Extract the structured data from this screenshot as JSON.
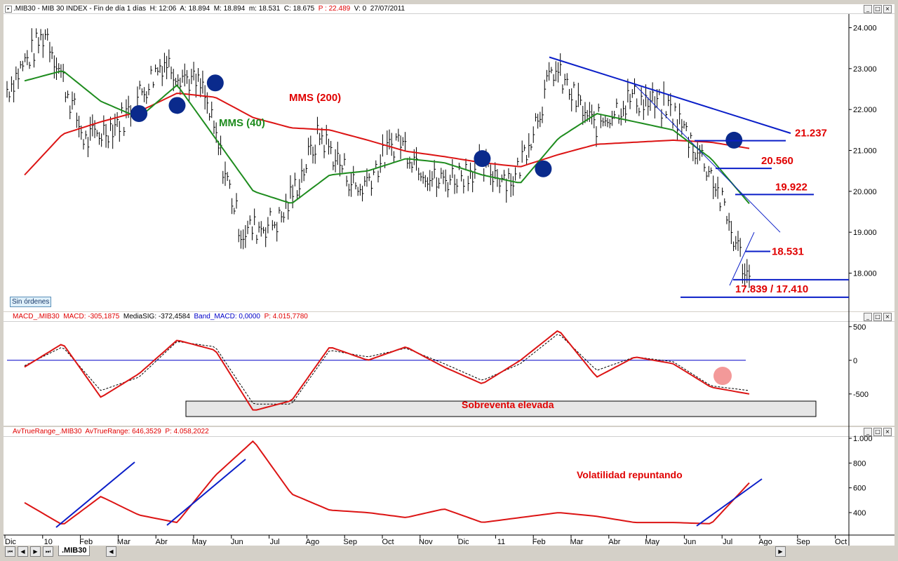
{
  "header": {
    "symbol": ".MIB30",
    "name": "MIB 30 INDEX",
    "period": "Fin de día 1 días",
    "h": "H: 12:06",
    "a": "A: 18.894",
    "m": "M: 18.894",
    "mn": "m: 18.531",
    "c": "C: 18.675",
    "p": "P : 22.489",
    "v": "V: 0",
    "date": "27/07/2011"
  },
  "macd_header": {
    "label": "MACD_.MIB30",
    "macd": "MACD: -305,1875",
    "signal": "MediaSIG: -372,4584",
    "band": "Band_MACD: 0,0000",
    "p": "P: 4.015,7780"
  },
  "atr_header": {
    "label": "AvTrueRange_.MIB30",
    "value": "AvTrueRange: 646,3529",
    "p": "P: 4.058,2022"
  },
  "orders_button": "Sin órdenes",
  "sheet_tab": ".MIB30",
  "annotations": {
    "mms200": "MMS (200)",
    "mms40": "MMS (40)",
    "oversold": "Sobreventa elevada",
    "volatility": "Volatilidad repuntando"
  },
  "levels": [
    {
      "value": 21237,
      "label": "21.237"
    },
    {
      "value": 20560,
      "label": "20.560"
    },
    {
      "value": 19922,
      "label": "19.922"
    },
    {
      "value": 18531,
      "label": "18.531"
    },
    {
      "value": 17839,
      "label": "17.839 / 17.410"
    }
  ],
  "colors": {
    "price": "#000000",
    "mms200": "#dc1414",
    "mms40": "#1e8c1e",
    "trend": "#0a1ec8",
    "label": "#e00000",
    "cross": "#0a2a8c"
  },
  "x_ticks": [
    "Dic",
    "10",
    "Feb",
    "Mar",
    "Abr",
    "May",
    "Jun",
    "Jul",
    "Ago",
    "Sep",
    "Oct",
    "Nov",
    "Dic",
    "11",
    "Feb",
    "Mar",
    "Abr",
    "May",
    "Jun",
    "Jul",
    "Ago",
    "Sep",
    "Oct"
  ],
  "chart_data": [
    {
      "type": "line",
      "title": ".MIB30 - MIB 30 INDEX",
      "x": [
        "Dic",
        "10",
        "Feb",
        "Mar",
        "Abr",
        "May",
        "Jun",
        "Jul",
        "Ago",
        "Sep",
        "Oct",
        "Nov",
        "Dic",
        "11",
        "Feb",
        "Mar",
        "Abr",
        "May",
        "Jun",
        "Jul"
      ],
      "series": [
        {
          "name": "Precio",
          "values": [
            22500,
            23900,
            21200,
            21800,
            23200,
            22500,
            19000,
            19300,
            21400,
            20000,
            21300,
            20200,
            20600,
            20300,
            23000,
            21600,
            22300,
            22000,
            20500,
            17800
          ]
        },
        {
          "name": "MMS (200)",
          "values": [
            20400,
            21400,
            21700,
            21950,
            22400,
            22300,
            21800,
            21550,
            21500,
            21250,
            20980,
            20850,
            20700,
            20600,
            20900,
            21150,
            21200,
            21250,
            21200,
            21050
          ]
        },
        {
          "name": "MMS (40)",
          "values": [
            22700,
            22950,
            22200,
            21800,
            22600,
            21300,
            20000,
            19700,
            20400,
            20500,
            20800,
            20700,
            20400,
            20200,
            21300,
            21900,
            21700,
            21500,
            20800,
            19700
          ]
        }
      ],
      "ylim": [
        17100,
        24300
      ],
      "y_ticks": [
        "24.000",
        "23.000",
        "22.000",
        "21.000",
        "20.000",
        "19.000",
        "18.000"
      ]
    },
    {
      "type": "line",
      "title": "MACD_.MIB30",
      "x": [
        "Dic",
        "10",
        "Feb",
        "Mar",
        "Abr",
        "May",
        "Jun",
        "Jul",
        "Ago",
        "Sep",
        "Oct",
        "Nov",
        "Dic",
        "11",
        "Feb",
        "Mar",
        "Abr",
        "May",
        "Jun",
        "Jul"
      ],
      "series": [
        {
          "name": "MACD",
          "values": [
            -100,
            250,
            -550,
            -200,
            300,
            150,
            -750,
            -600,
            200,
            0,
            200,
            -100,
            -350,
            0,
            450,
            -250,
            50,
            -50,
            -400,
            -500
          ]
        },
        {
          "name": "MediaSIG",
          "values": [
            -80,
            200,
            -450,
            -250,
            280,
            200,
            -650,
            -650,
            150,
            50,
            180,
            -50,
            -300,
            -50,
            400,
            -150,
            50,
            -20,
            -380,
            -450
          ]
        },
        {
          "name": "Band_MACD",
          "values": [
            0,
            0,
            0,
            0,
            0,
            0,
            0,
            0,
            0,
            0,
            0,
            0,
            0,
            0,
            0,
            0,
            0,
            0,
            0,
            0
          ]
        }
      ],
      "ylim": [
        -950,
        550
      ],
      "y_ticks": [
        "500",
        "0",
        "-500"
      ]
    },
    {
      "type": "line",
      "title": "AvTrueRange_.MIB30",
      "x": [
        "Dic",
        "10",
        "Feb",
        "Mar",
        "Abr",
        "May",
        "Jun",
        "Jul",
        "Ago",
        "Sep",
        "Oct",
        "Nov",
        "Dic",
        "11",
        "Feb",
        "Mar",
        "Abr",
        "May",
        "Jun",
        "Jul"
      ],
      "series": [
        {
          "name": "AvTrueRange",
          "values": [
            480,
            300,
            530,
            380,
            320,
            700,
            980,
            550,
            420,
            400,
            360,
            430,
            320,
            360,
            400,
            370,
            320,
            320,
            310,
            640
          ]
        }
      ],
      "ylim": [
        230,
        1000
      ],
      "y_ticks": [
        "1.000",
        "800",
        "600",
        "400"
      ]
    }
  ]
}
